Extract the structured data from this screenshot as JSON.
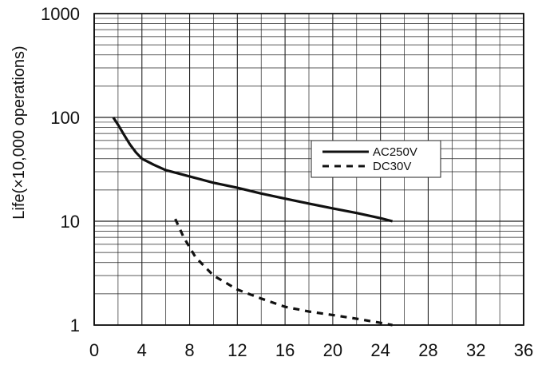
{
  "chart_data": {
    "type": "line",
    "title": "",
    "xlabel": "",
    "ylabel": "Life(×10,000 operations)",
    "xlim": [
      0,
      36
    ],
    "ylim": [
      1,
      1000
    ],
    "y_scale": "log",
    "grid": true,
    "x_ticks": [
      "0",
      "4",
      "8",
      "12",
      "16",
      "20",
      "24",
      "28",
      "32",
      "36"
    ],
    "y_ticks": [
      "1",
      "10",
      "100",
      "1000"
    ],
    "legend": "center-right",
    "series": [
      {
        "name": "AC250V",
        "style": "solid",
        "color": "#111111",
        "x": [
          1.6,
          2.0,
          2.5,
          3.0,
          3.5,
          4.0,
          5.0,
          6.0,
          7.0,
          8.0,
          10.0,
          12.0,
          14.0,
          16.0,
          18.0,
          20.0,
          22.0,
          24.0,
          25.0
        ],
        "y": [
          100,
          85,
          68,
          55,
          46,
          40,
          35,
          31,
          29,
          27,
          23.5,
          21,
          18.5,
          16.5,
          14.8,
          13.3,
          12,
          10.7,
          10
        ]
      },
      {
        "name": "DC30V",
        "style": "dashed",
        "color": "#111111",
        "x": [
          6.8,
          7.5,
          8.5,
          10.0,
          12.0,
          14.0,
          16.0,
          18.0,
          20.0,
          22.0,
          24.0,
          25.0
        ],
        "y": [
          10.5,
          7.0,
          4.5,
          3.0,
          2.2,
          1.8,
          1.5,
          1.35,
          1.25,
          1.15,
          1.05,
          1.0
        ]
      }
    ]
  }
}
